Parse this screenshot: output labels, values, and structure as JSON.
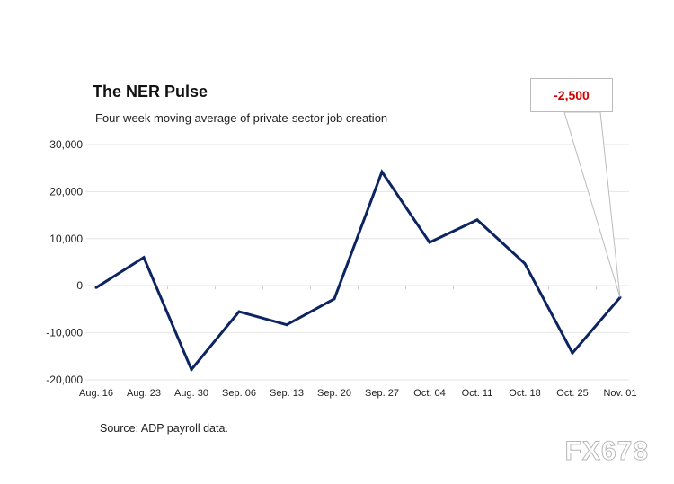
{
  "chart_data": {
    "type": "line",
    "title": "The NER Pulse",
    "subtitle": "Four-week moving average of private-sector job creation",
    "source": "Source: ADP payroll data.",
    "categories": [
      "Aug. 16",
      "Aug. 23",
      "Aug. 30",
      "Sep. 06",
      "Sep. 13",
      "Sep. 20",
      "Sep. 27",
      "Oct. 04",
      "Oct. 11",
      "Oct. 18",
      "Oct. 25",
      "Nov. 01"
    ],
    "values": [
      -400,
      6000,
      -17800,
      -5500,
      -8300,
      -2800,
      24200,
      9200,
      14000,
      4700,
      -14300,
      -2500
    ],
    "ylim": [
      -20000,
      30000
    ],
    "yticks": [
      30000,
      20000,
      10000,
      0,
      -10000,
      -20000
    ],
    "ytick_labels": [
      "30,000",
      "20,000",
      "10,000",
      "0",
      "-10,000",
      "-20,000"
    ],
    "grid": true,
    "line_color": "#0d2463",
    "annotation": {
      "text": "-2,500",
      "target": "Nov. 01",
      "color": "#d00000"
    }
  },
  "watermark": "FX678"
}
